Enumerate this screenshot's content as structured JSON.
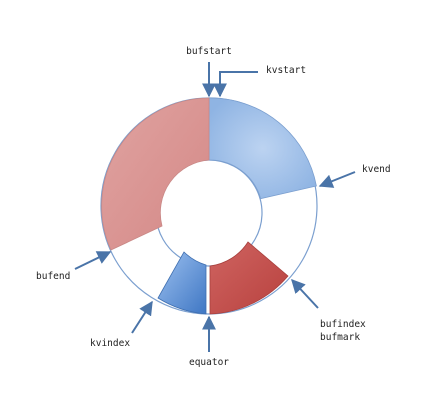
{
  "labels": {
    "bufstart": "bufstart",
    "kvstart": "kvstart",
    "kvend": "kvend",
    "bufend": "bufend",
    "bufindex": "bufindex",
    "bufmark": "bufmark",
    "kvindex": "kvindex",
    "equator": "equator"
  },
  "colors": {
    "segment_blue_light": "#8fb4e3",
    "segment_blue_dark": "#4f86cf",
    "segment_red_dark": "#c0504d",
    "segment_red_light": "#d99694",
    "ring_outline": "#7b9fcf",
    "arrow": "#4a74a8"
  },
  "icons": {
    "arrow": "arrow-icon"
  }
}
